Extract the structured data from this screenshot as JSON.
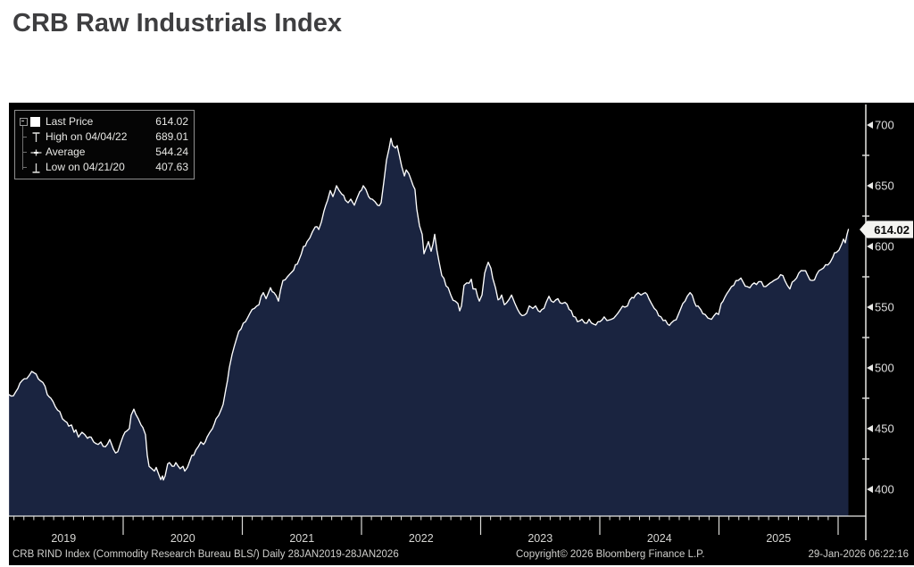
{
  "page": {
    "title": "CRB Raw Industrials Index"
  },
  "chart": {
    "legend": {
      "rows": [
        {
          "icon": "swatch",
          "label": "Last Price",
          "value": "614.02"
        },
        {
          "icon": "high",
          "label": "High on 04/04/22",
          "value": "689.01"
        },
        {
          "icon": "average",
          "label": "Average",
          "value": "544.24"
        },
        {
          "icon": "low",
          "label": "Low on 04/21/20",
          "value": "407.63"
        }
      ]
    },
    "last_price_flag": "614.02",
    "footer": {
      "left": "CRB RIND Index (Commodity Research Bureau BLS/) Daily 28JAN2019-28JAN2026",
      "center": "Copyright© 2026 Bloomberg Finance L.P.",
      "right": "29-Jan-2026 06:22:16"
    },
    "colors": {
      "background": "#000000",
      "area_fill": "#1a2440",
      "line": "#ffffff",
      "axis": "#e8e8e6",
      "tick": "#d9d9d6",
      "flag_bg": "#f4f4f1"
    }
  },
  "chart_data": {
    "type": "area",
    "title": "CRB Raw Industrials Index",
    "xlabel": "",
    "ylabel": "",
    "x_axis": {
      "unit": "decimal_year",
      "range": [
        2019.04,
        2026.09
      ],
      "tick_labels": [
        "2019",
        "2020",
        "2021",
        "2022",
        "2023",
        "2024",
        "2025"
      ]
    },
    "y_axis": {
      "range": [
        378,
        716
      ],
      "ticks": [
        400,
        450,
        500,
        550,
        600,
        650,
        700
      ],
      "minor_ticks": [
        425,
        475,
        525,
        575,
        625,
        675
      ]
    },
    "grid": false,
    "legend_position": "top-left",
    "stats": {
      "last_price": 614.02,
      "high": {
        "date": "04/04/22",
        "value": 689.01
      },
      "average": 544.24,
      "low": {
        "date": "04/21/20",
        "value": 407.63
      }
    },
    "points": [
      [
        2019.041,
        478
      ],
      [
        2019.079,
        477
      ],
      [
        2019.116,
        483
      ],
      [
        2019.169,
        491
      ],
      [
        2019.213,
        494
      ],
      [
        2019.251,
        496
      ],
      [
        2019.288,
        491
      ],
      [
        2019.326,
        488
      ],
      [
        2019.363,
        478
      ],
      [
        2019.393,
        475
      ],
      [
        2019.431,
        468
      ],
      [
        2019.468,
        464
      ],
      [
        2019.491,
        458
      ],
      [
        2019.513,
        456
      ],
      [
        2019.543,
        452
      ],
      [
        2019.566,
        453
      ],
      [
        2019.588,
        447
      ],
      [
        2019.603,
        449
      ],
      [
        2019.625,
        443
      ],
      [
        2019.655,
        447
      ],
      [
        2019.678,
        445
      ],
      [
        2019.7,
        442
      ],
      [
        2019.73,
        443
      ],
      [
        2019.753,
        439
      ],
      [
        2019.79,
        437
      ],
      [
        2019.813,
        439
      ],
      [
        2019.85,
        435
      ],
      [
        2019.888,
        441
      ],
      [
        2019.918,
        433
      ],
      [
        2019.955,
        431
      ],
      [
        2019.978,
        438
      ],
      [
        2020.0,
        444
      ],
      [
        2020.015,
        447
      ],
      [
        2020.03,
        448
      ],
      [
        2020.052,
        450
      ],
      [
        2020.067,
        461
      ],
      [
        2020.09,
        466
      ],
      [
        2020.105,
        462
      ],
      [
        2020.127,
        458
      ],
      [
        2020.15,
        453
      ],
      [
        2020.165,
        451
      ],
      [
        2020.187,
        445
      ],
      [
        2020.202,
        428
      ],
      [
        2020.217,
        419
      ],
      [
        2020.24,
        417
      ],
      [
        2020.262,
        415
      ],
      [
        2020.277,
        418
      ],
      [
        2020.3,
        412
      ],
      [
        2020.315,
        408
      ],
      [
        2020.33,
        411
      ],
      [
        2020.337,
        407.63
      ],
      [
        2020.352,
        411
      ],
      [
        2020.374,
        421
      ],
      [
        2020.389,
        422
      ],
      [
        2020.412,
        419
      ],
      [
        2020.442,
        422
      ],
      [
        2020.479,
        417
      ],
      [
        2020.502,
        419
      ],
      [
        2020.517,
        415
      ],
      [
        2020.539,
        418
      ],
      [
        2020.562,
        424
      ],
      [
        2020.592,
        428
      ],
      [
        2020.629,
        435
      ],
      [
        2020.652,
        439
      ],
      [
        2020.674,
        437
      ],
      [
        2020.704,
        443
      ],
      [
        2020.727,
        447
      ],
      [
        2020.749,
        450
      ],
      [
        2020.779,
        458
      ],
      [
        2020.802,
        461
      ],
      [
        2020.824,
        466
      ],
      [
        2020.839,
        470
      ],
      [
        2020.861,
        482
      ],
      [
        2020.891,
        500
      ],
      [
        2020.914,
        511
      ],
      [
        2020.951,
        524
      ],
      [
        2020.989,
        532
      ],
      [
        2021.026,
        538
      ],
      [
        2021.064,
        545
      ],
      [
        2021.101,
        549
      ],
      [
        2021.139,
        552
      ],
      [
        2021.176,
        562
      ],
      [
        2021.199,
        557
      ],
      [
        2021.236,
        566
      ],
      [
        2021.266,
        562
      ],
      [
        2021.303,
        555
      ],
      [
        2021.341,
        572
      ],
      [
        2021.378,
        575
      ],
      [
        2021.416,
        579
      ],
      [
        2021.446,
        585
      ],
      [
        2021.476,
        589
      ],
      [
        2021.513,
        600
      ],
      [
        2021.543,
        604
      ],
      [
        2021.566,
        607
      ],
      [
        2021.588,
        612
      ],
      [
        2021.611,
        616
      ],
      [
        2021.641,
        614
      ],
      [
        2021.663,
        620
      ],
      [
        2021.685,
        629
      ],
      [
        2021.715,
        638
      ],
      [
        2021.738,
        646
      ],
      [
        2021.76,
        641
      ],
      [
        2021.79,
        650
      ],
      [
        2021.813,
        646
      ],
      [
        2021.835,
        643
      ],
      [
        2021.865,
        638
      ],
      [
        2021.888,
        636
      ],
      [
        2021.91,
        639
      ],
      [
        2021.94,
        634
      ],
      [
        2021.963,
        640
      ],
      [
        2021.985,
        645
      ],
      [
        2022.015,
        650
      ],
      [
        2022.037,
        647
      ],
      [
        2022.06,
        641
      ],
      [
        2022.09,
        639
      ],
      [
        2022.112,
        637
      ],
      [
        2022.135,
        634
      ],
      [
        2022.165,
        636
      ],
      [
        2022.187,
        653
      ],
      [
        2022.21,
        671
      ],
      [
        2022.232,
        681
      ],
      [
        2022.247,
        689.01
      ],
      [
        2022.262,
        683
      ],
      [
        2022.285,
        681
      ],
      [
        2022.3,
        683
      ],
      [
        2022.322,
        673
      ],
      [
        2022.337,
        666
      ],
      [
        2022.36,
        658
      ],
      [
        2022.375,
        663
      ],
      [
        2022.397,
        660
      ],
      [
        2022.412,
        656
      ],
      [
        2022.434,
        650
      ],
      [
        2022.449,
        647
      ],
      [
        2022.464,
        631
      ],
      [
        2022.487,
        617
      ],
      [
        2022.509,
        610
      ],
      [
        2022.524,
        594
      ],
      [
        2022.547,
        600
      ],
      [
        2022.562,
        604
      ],
      [
        2022.584,
        596
      ],
      [
        2022.614,
        610
      ],
      [
        2022.652,
        587
      ],
      [
        2022.674,
        576
      ],
      [
        2022.727,
        566
      ],
      [
        2022.749,
        560
      ],
      [
        2022.787,
        555
      ],
      [
        2022.809,
        553
      ],
      [
        2022.824,
        547
      ],
      [
        2022.839,
        551
      ],
      [
        2022.861,
        568
      ],
      [
        2022.884,
        570
      ],
      [
        2022.921,
        573
      ],
      [
        2022.936,
        565
      ],
      [
        2022.959,
        565
      ],
      [
        2022.974,
        559
      ],
      [
        2022.989,
        555
      ],
      [
        2023.011,
        560
      ],
      [
        2023.034,
        578
      ],
      [
        2023.064,
        587
      ],
      [
        2023.086,
        582
      ],
      [
        2023.101,
        574
      ],
      [
        2023.124,
        566
      ],
      [
        2023.146,
        556
      ],
      [
        2023.176,
        560
      ],
      [
        2023.199,
        552
      ],
      [
        2023.236,
        556
      ],
      [
        2023.259,
        560
      ],
      [
        2023.288,
        553
      ],
      [
        2023.311,
        548
      ],
      [
        2023.348,
        543
      ],
      [
        2023.386,
        545
      ],
      [
        2023.408,
        551
      ],
      [
        2023.438,
        549
      ],
      [
        2023.461,
        551
      ],
      [
        2023.483,
        547
      ],
      [
        2023.513,
        548
      ],
      [
        2023.55,
        554
      ],
      [
        2023.573,
        559
      ],
      [
        2023.611,
        554
      ],
      [
        2023.648,
        557
      ],
      [
        2023.685,
        553
      ],
      [
        2023.708,
        554
      ],
      [
        2023.76,
        547
      ],
      [
        2023.813,
        538
      ],
      [
        2023.85,
        540
      ],
      [
        2023.873,
        537
      ],
      [
        2023.91,
        540
      ],
      [
        2023.948,
        536
      ],
      [
        2023.985,
        538
      ],
      [
        2024.0,
        538
      ],
      [
        2024.037,
        542
      ],
      [
        2024.06,
        539
      ],
      [
        2024.097,
        540
      ],
      [
        2024.135,
        543
      ],
      [
        2024.172,
        548
      ],
      [
        2024.21,
        550
      ],
      [
        2024.232,
        551
      ],
      [
        2024.27,
        558
      ],
      [
        2024.3,
        560
      ],
      [
        2024.322,
        562
      ],
      [
        2024.345,
        560
      ],
      [
        2024.382,
        562
      ],
      [
        2024.412,
        557
      ],
      [
        2024.434,
        553
      ],
      [
        2024.457,
        549
      ],
      [
        2024.494,
        543
      ],
      [
        2024.532,
        539
      ],
      [
        2024.569,
        536
      ],
      [
        2024.599,
        537
      ],
      [
        2024.622,
        539
      ],
      [
        2024.659,
        544
      ],
      [
        2024.697,
        553
      ],
      [
        2024.734,
        559
      ],
      [
        2024.757,
        562
      ],
      [
        2024.794,
        554
      ],
      [
        2024.824,
        551
      ],
      [
        2024.847,
        548
      ],
      [
        2024.884,
        544
      ],
      [
        2024.907,
        541
      ],
      [
        2024.937,
        540
      ],
      [
        2024.959,
        543
      ],
      [
        2024.996,
        544
      ],
      [
        2025.019,
        553
      ],
      [
        2025.049,
        558
      ],
      [
        2025.086,
        564
      ],
      [
        2025.124,
        568
      ],
      [
        2025.161,
        572
      ],
      [
        2025.184,
        574
      ],
      [
        2025.206,
        570
      ],
      [
        2025.236,
        567
      ],
      [
        2025.259,
        566
      ],
      [
        2025.296,
        570
      ],
      [
        2025.333,
        571
      ],
      [
        2025.356,
        571
      ],
      [
        2025.393,
        567
      ],
      [
        2025.431,
        570
      ],
      [
        2025.461,
        572
      ],
      [
        2025.498,
        574
      ],
      [
        2025.536,
        576
      ],
      [
        2025.573,
        568
      ],
      [
        2025.595,
        565
      ],
      [
        2025.633,
        572
      ],
      [
        2025.67,
        578
      ],
      [
        2025.708,
        580
      ],
      [
        2025.745,
        576
      ],
      [
        2025.783,
        572
      ],
      [
        2025.82,
        577
      ],
      [
        2025.858,
        581
      ],
      [
        2025.895,
        585
      ],
      [
        2025.933,
        587
      ],
      [
        2025.955,
        591
      ],
      [
        2025.985,
        595
      ],
      [
        2026.007,
        597
      ],
      [
        2026.03,
        602
      ],
      [
        2026.045,
        606
      ],
      [
        2026.06,
        603
      ],
      [
        2026.075,
        610
      ],
      [
        2026.086,
        614.02
      ]
    ]
  }
}
